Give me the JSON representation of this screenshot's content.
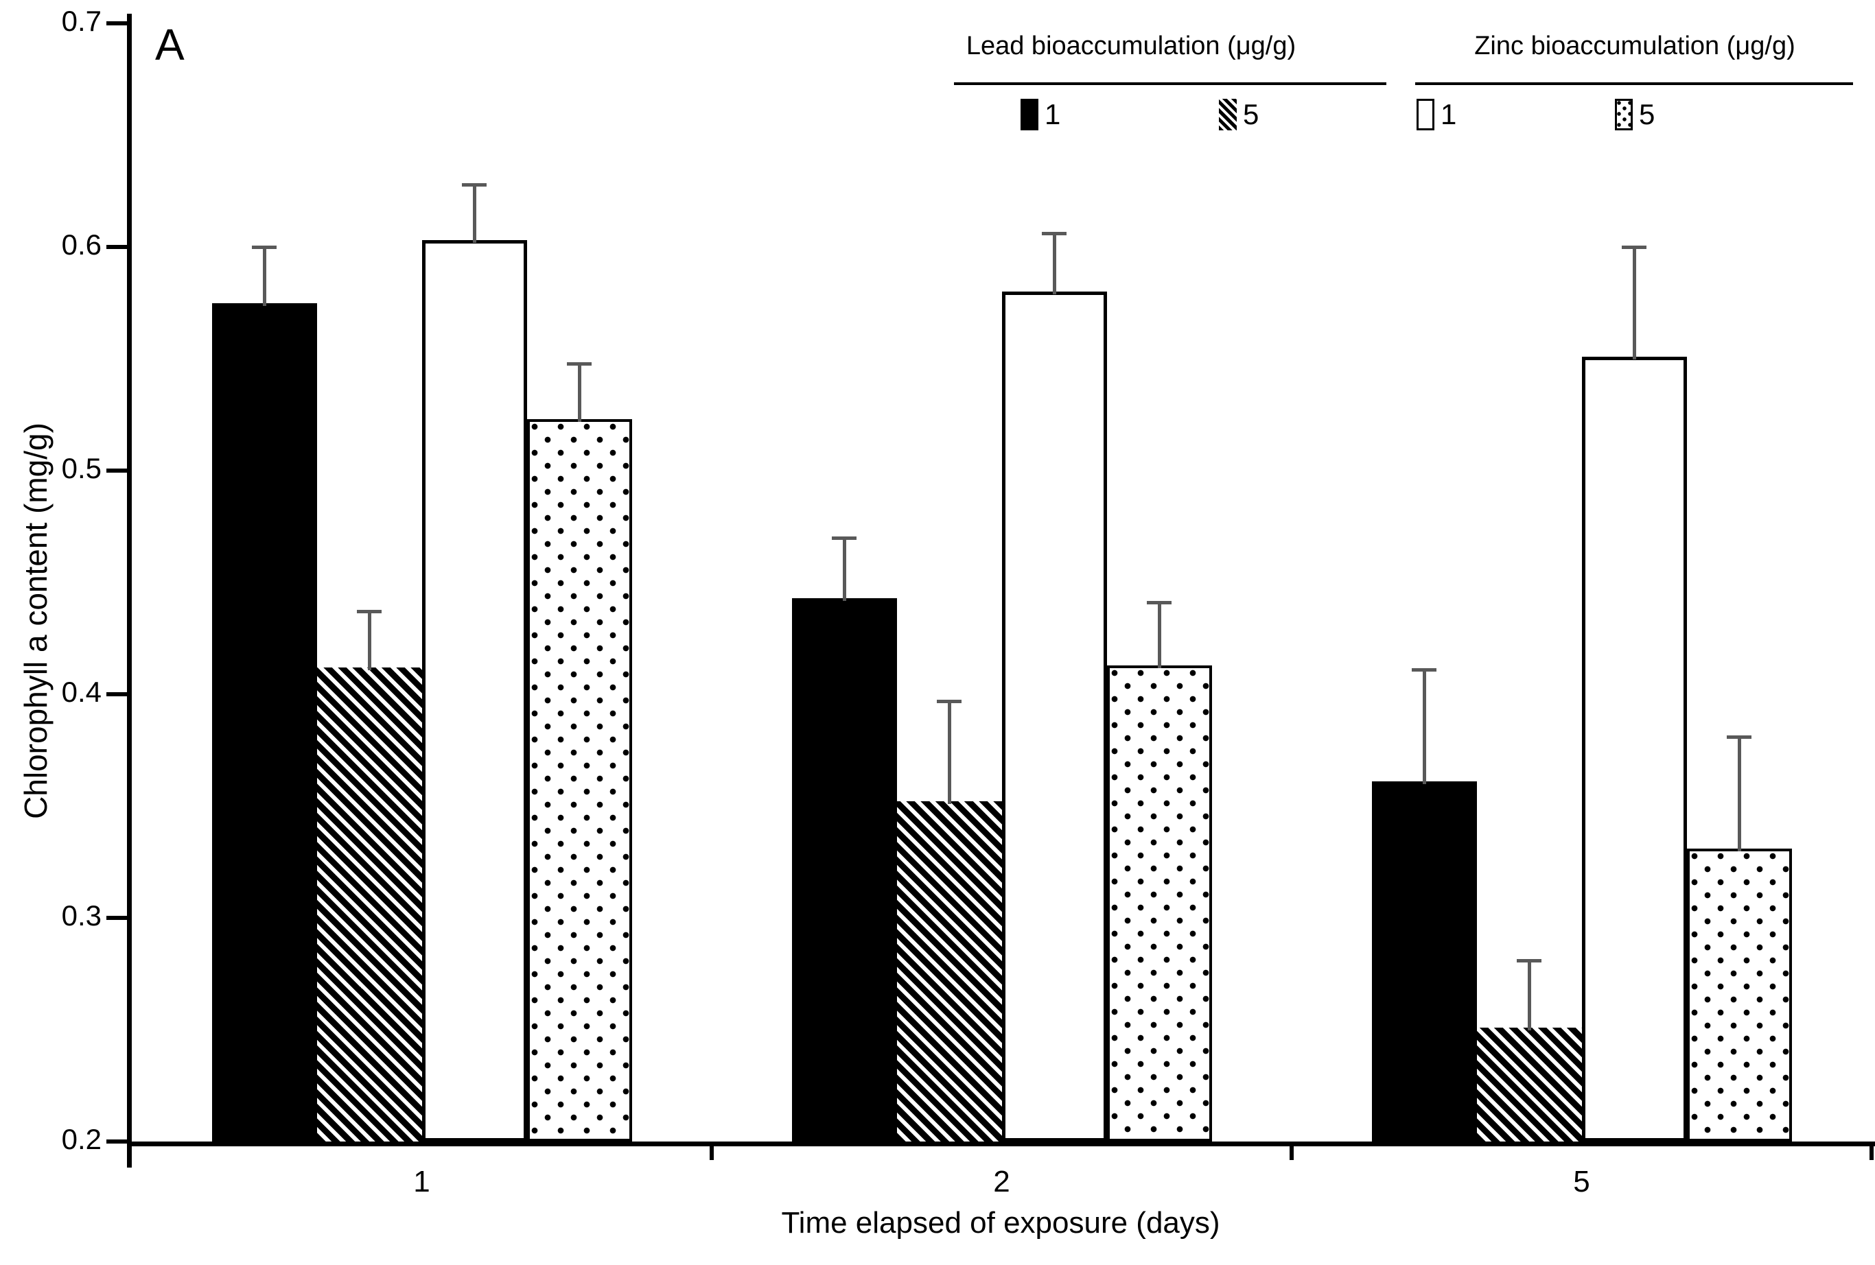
{
  "labels": {
    "panel": "A"
  },
  "chart_data": {
    "type": "bar",
    "title": "A",
    "categories": [
      "1",
      "2",
      "5"
    ],
    "series": [
      {
        "name": "Lead bioaccumulation 1 μg/g",
        "legend_group": "Lead bioaccumulation (μg/g)",
        "legend_label": "1",
        "pattern": "solid-black",
        "values": [
          0.575,
          0.443,
          0.361
        ],
        "errors": [
          0.025,
          0.027,
          0.05
        ]
      },
      {
        "name": "Lead bioaccumulation 5 μg/g",
        "legend_group": "Lead bioaccumulation (μg/g)",
        "legend_label": "5",
        "pattern": "diagonal-hatch",
        "values": [
          0.412,
          0.352,
          0.251
        ],
        "errors": [
          0.025,
          0.045,
          0.03
        ]
      },
      {
        "name": "Zinc bioaccumulation 1 μg/g",
        "legend_group": "Zinc bioaccumulation (μg/g)",
        "legend_label": "1",
        "pattern": "white",
        "values": [
          0.603,
          0.58,
          0.551
        ],
        "errors": [
          0.025,
          0.026,
          0.049
        ]
      },
      {
        "name": "Zinc bioaccumulation 5 μg/g",
        "legend_group": "Zinc bioaccumulation (μg/g)",
        "legend_label": "5",
        "pattern": "dotted",
        "values": [
          0.523,
          0.413,
          0.331
        ],
        "errors": [
          0.025,
          0.028,
          0.05
        ]
      }
    ],
    "xlabel": "Time elapsed of exposure (days)",
    "ylabel": "Chlorophyll a content (mg/g)",
    "ylim": [
      0.2,
      0.7
    ],
    "yticks": [
      0.7,
      0.6,
      0.5,
      0.4,
      0.3,
      0.2
    ],
    "grid": false,
    "error_bars": "upper-only",
    "legend_position": "top-right",
    "colors": {
      "bar_fill_dark": "#000000",
      "bar_fill_light": "#ffffff",
      "error_bar": "#595959",
      "axis": "#000000",
      "background": "#ffffff"
    }
  },
  "legend": {
    "groups": [
      {
        "title": "Lead bioaccumulation (μg/g)",
        "items": [
          {
            "label": "1",
            "pattern": "solid-black"
          },
          {
            "label": "5",
            "pattern": "diagonal-hatch"
          }
        ]
      },
      {
        "title": "Zinc bioaccumulation (μg/g)",
        "items": [
          {
            "label": "1",
            "pattern": "white"
          },
          {
            "label": "5",
            "pattern": "dotted"
          }
        ]
      }
    ]
  }
}
